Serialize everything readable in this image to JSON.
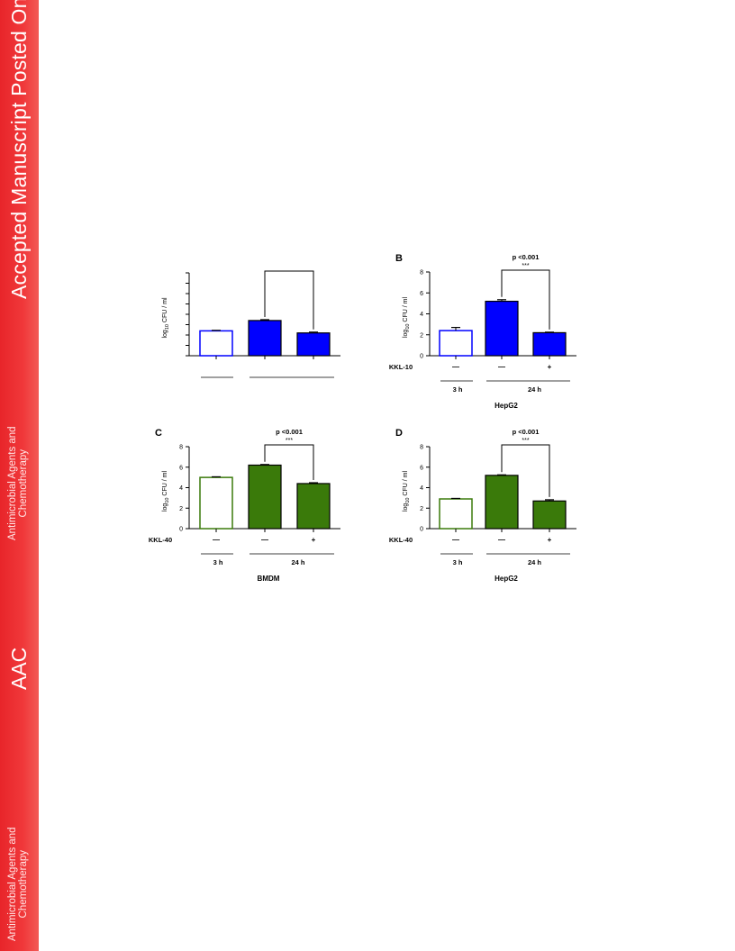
{
  "sidebar": {
    "title": "Accepted Manuscript Posted Online",
    "journal_line1": "Antimicrobial Agents and",
    "journal_line2": "Chemotherapy",
    "acronym": "AAC",
    "color": "#e8252a"
  },
  "colors": {
    "blue": "#0000ff",
    "green": "#3a7a0a"
  },
  "chart_data": [
    {
      "id": "A",
      "type": "bar",
      "panel_label": "",
      "ylabel_prefix": "log",
      "ylabel_sub": "10",
      "ylabel_suffix": " CFU / ml",
      "ylim": [
        0,
        8
      ],
      "ticks": [],
      "categories": [
        "—",
        "—",
        "+"
      ],
      "values": [
        2.4,
        3.4,
        2.2
      ],
      "errors": [
        0.05,
        0.08,
        0.08
      ],
      "filled": [
        false,
        true,
        true
      ],
      "color": "#0000ff",
      "row_label": "",
      "time_labels": [
        "",
        ""
      ],
      "cell_label": "",
      "pvalue": "",
      "stars": "",
      "partial": true
    },
    {
      "id": "B",
      "type": "bar",
      "panel_label": "B",
      "ylabel_prefix": "log",
      "ylabel_sub": "10",
      "ylabel_suffix": " CFU / ml",
      "ylim": [
        0,
        8
      ],
      "ticks": [
        "0",
        "2",
        "4",
        "6",
        "8"
      ],
      "categories": [
        "—",
        "—",
        "+"
      ],
      "values": [
        2.4,
        5.2,
        2.2
      ],
      "errors": [
        0.3,
        0.15,
        0.05
      ],
      "filled": [
        false,
        true,
        true
      ],
      "color": "#0000ff",
      "row_label": "KKL-10",
      "time_labels": [
        "3 h",
        "24 h"
      ],
      "cell_label": "HepG2",
      "pvalue": "p <0.001",
      "stars": "***",
      "partial": false
    },
    {
      "id": "C",
      "type": "bar",
      "panel_label": "C",
      "ylabel_prefix": "log",
      "ylabel_sub": "10",
      "ylabel_suffix": " CFU / ml",
      "ylim": [
        0,
        8
      ],
      "ticks": [
        "0",
        "2",
        "4",
        "6",
        "8"
      ],
      "categories": [
        "—",
        "—",
        "+"
      ],
      "values": [
        5.0,
        6.2,
        4.4
      ],
      "errors": [
        0.06,
        0.06,
        0.08
      ],
      "filled": [
        false,
        true,
        true
      ],
      "color": "#3a7a0a",
      "row_label": "KKL-40",
      "time_labels": [
        "3 h",
        "24 h"
      ],
      "cell_label": "BMDM",
      "pvalue": "p <0.001",
      "stars": "***",
      "partial": false
    },
    {
      "id": "D",
      "type": "bar",
      "panel_label": "D",
      "ylabel_prefix": "log",
      "ylabel_sub": "10",
      "ylabel_suffix": " CFU / ml",
      "ylim": [
        0,
        8
      ],
      "ticks": [
        "0",
        "2",
        "4",
        "6",
        "8"
      ],
      "categories": [
        "—",
        "—",
        "+"
      ],
      "values": [
        2.9,
        5.2,
        2.7
      ],
      "errors": [
        0.05,
        0.05,
        0.12
      ],
      "filled": [
        false,
        true,
        true
      ],
      "color": "#3a7a0a",
      "row_label": "KKL-40",
      "time_labels": [
        "3 h",
        "24 h"
      ],
      "cell_label": "HepG2",
      "pvalue": "p <0.001",
      "stars": "***",
      "partial": false
    }
  ]
}
